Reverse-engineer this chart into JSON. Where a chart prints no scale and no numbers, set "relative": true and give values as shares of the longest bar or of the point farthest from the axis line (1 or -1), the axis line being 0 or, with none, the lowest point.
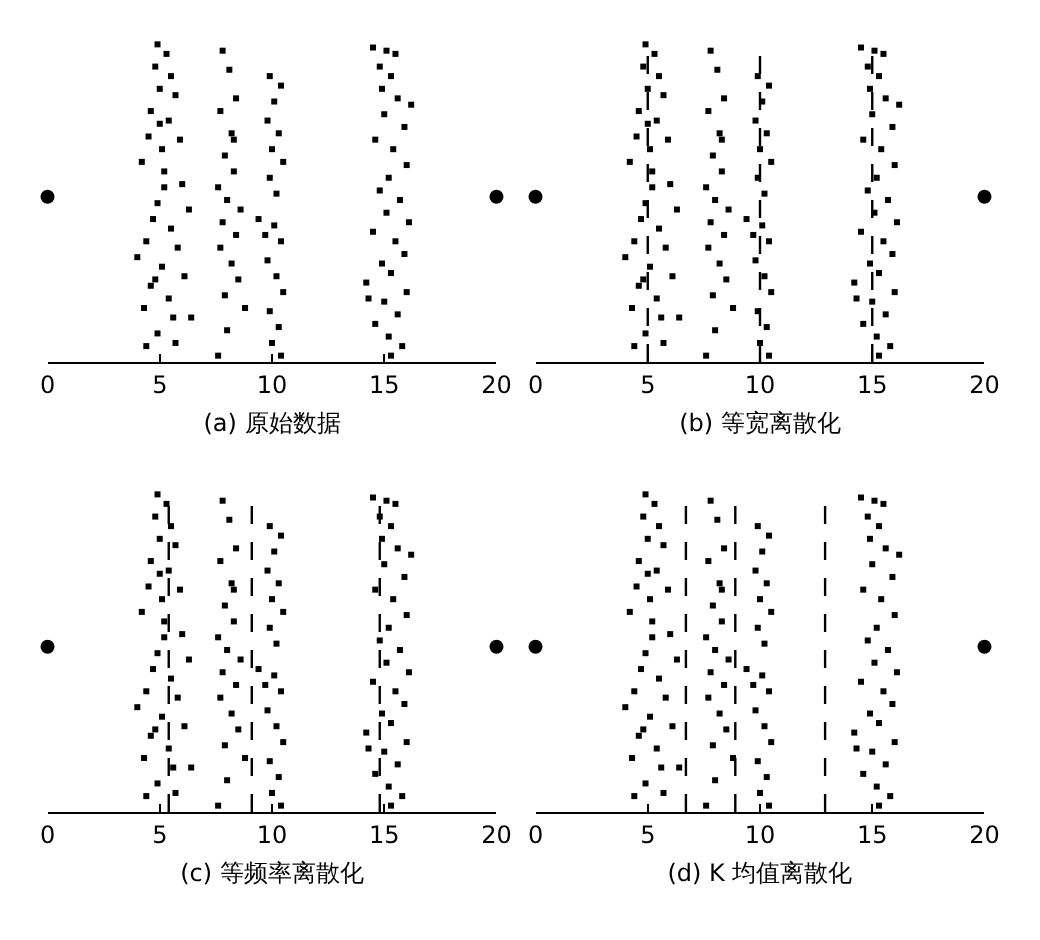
{
  "chart_data": [
    {
      "type": "scatter",
      "xlabel": "(a) 原始数据",
      "relative": true,
      "xlim": [
        0,
        20
      ],
      "xticks": [
        0,
        5,
        10,
        15,
        20
      ],
      "series": [
        {
          "color": "#000000",
          "marker": "square",
          "x": [
            4.9,
            5.3,
            4.8,
            5.5,
            5.0,
            5.7,
            4.6,
            5.4,
            4.5,
            5.9,
            5.1,
            4.2,
            5.2,
            6.0,
            4.9,
            6.3,
            4.7,
            5.5,
            4.4,
            5.8,
            4.0,
            5.1,
            6.1,
            4.6,
            5.4,
            4.3,
            5.6,
            6.4,
            4.9,
            5.7,
            4.4,
            5.2,
            4.8,
            5.0,
            7.8,
            8.1,
            8.4,
            7.7,
            8.2,
            7.9,
            8.3,
            7.6,
            8.0,
            8.6,
            7.8,
            8.4,
            7.7,
            8.2,
            8.5,
            7.9,
            8.8,
            8.0,
            7.6,
            8.3,
            9.9,
            10.4,
            10.1,
            9.8,
            10.3,
            10.0,
            10.5,
            9.9,
            10.2,
            9.4,
            10.1,
            10.4,
            9.8,
            10.2,
            10.5,
            9.9,
            10.3,
            10.0,
            10.4,
            9.7,
            14.5,
            15.1,
            15.5,
            14.8,
            15.3,
            14.9,
            15.6,
            16.2,
            15.0,
            15.9,
            14.6,
            15.4,
            16.0,
            15.2,
            14.8,
            15.7,
            15.1,
            16.1,
            14.5,
            15.5,
            15.9,
            14.9,
            15.3,
            14.2,
            16.0,
            15.0,
            15.6,
            14.6,
            15.2,
            15.8,
            15.3,
            14.3
          ],
          "values": [
            1,
            0.97,
            0.93,
            0.9,
            0.86,
            0.84,
            0.79,
            0.76,
            0.71,
            0.7,
            0.67,
            0.63,
            0.6,
            0.56,
            0.5,
            0.48,
            0.45,
            0.42,
            0.38,
            0.36,
            0.33,
            0.3,
            0.27,
            0.24,
            0.2,
            0.17,
            0.14,
            0.14,
            0.09,
            0.06,
            0.05,
            0.55,
            0.26,
            0.75,
            0.98,
            0.92,
            0.83,
            0.79,
            0.72,
            0.65,
            0.6,
            0.55,
            0.51,
            0.48,
            0.44,
            0.4,
            0.36,
            0.31,
            0.26,
            0.21,
            0.17,
            0.1,
            0.02,
            0.7,
            0.9,
            0.87,
            0.82,
            0.76,
            0.72,
            0.67,
            0.63,
            0.58,
            0.53,
            0.45,
            0.43,
            0.38,
            0.32,
            0.27,
            0.22,
            0.16,
            0.11,
            0.06,
            0.02,
            0.4,
            0.99,
            0.98,
            0.97,
            0.93,
            0.9,
            0.86,
            0.83,
            0.81,
            0.78,
            0.74,
            0.7,
            0.67,
            0.62,
            0.58,
            0.54,
            0.51,
            0.47,
            0.44,
            0.41,
            0.38,
            0.34,
            0.31,
            0.28,
            0.25,
            0.22,
            0.19,
            0.15,
            0.12,
            0.08,
            0.05,
            0.02,
            0.2
          ]
        },
        {
          "color": "#000000",
          "marker": "circle",
          "x": [
            0,
            20
          ],
          "values": [
            0.52,
            0.52
          ]
        }
      ]
    },
    {
      "type": "scatter",
      "xlabel": "(b) 等宽离散化",
      "relative": true,
      "xlim": [
        0,
        20
      ],
      "xticks": [
        0,
        5,
        10,
        15,
        20
      ],
      "ref_lines": [
        {
          "axis": "x",
          "value": 5,
          "color": "#000000",
          "line_style": "dashed"
        },
        {
          "axis": "x",
          "value": 10,
          "color": "#000000",
          "line_style": "dashed"
        },
        {
          "axis": "x",
          "value": 15,
          "color": "#000000",
          "line_style": "dashed"
        }
      ],
      "series": [
        {
          "color": "#000000",
          "marker": "square",
          "x": [
            4.9,
            5.3,
            4.8,
            5.5,
            5.0,
            5.7,
            4.6,
            5.4,
            4.5,
            5.9,
            5.1,
            4.2,
            5.2,
            6.0,
            4.9,
            6.3,
            4.7,
            5.5,
            4.4,
            5.8,
            4.0,
            5.1,
            6.1,
            4.6,
            5.4,
            4.3,
            5.6,
            6.4,
            4.9,
            5.7,
            4.4,
            5.2,
            4.8,
            5.0,
            7.8,
            8.1,
            8.4,
            7.7,
            8.2,
            7.9,
            8.3,
            7.6,
            8.0,
            8.6,
            7.8,
            8.4,
            7.7,
            8.2,
            8.5,
            7.9,
            8.8,
            8.0,
            7.6,
            8.3,
            9.9,
            10.4,
            10.1,
            9.8,
            10.3,
            10.0,
            10.5,
            9.9,
            10.2,
            9.4,
            10.1,
            10.4,
            9.8,
            10.2,
            10.5,
            9.9,
            10.3,
            10.0,
            10.4,
            9.7,
            14.5,
            15.1,
            15.5,
            14.8,
            15.3,
            14.9,
            15.6,
            16.2,
            15.0,
            15.9,
            14.6,
            15.4,
            16.0,
            15.2,
            14.8,
            15.7,
            15.1,
            16.1,
            14.5,
            15.5,
            15.9,
            14.9,
            15.3,
            14.2,
            16.0,
            15.0,
            15.6,
            14.6,
            15.2,
            15.8,
            15.3,
            14.3
          ],
          "values": [
            1,
            0.97,
            0.93,
            0.9,
            0.86,
            0.84,
            0.79,
            0.76,
            0.71,
            0.7,
            0.67,
            0.63,
            0.6,
            0.56,
            0.5,
            0.48,
            0.45,
            0.42,
            0.38,
            0.36,
            0.33,
            0.3,
            0.27,
            0.24,
            0.2,
            0.17,
            0.14,
            0.14,
            0.09,
            0.06,
            0.05,
            0.55,
            0.26,
            0.75,
            0.98,
            0.92,
            0.83,
            0.79,
            0.72,
            0.65,
            0.6,
            0.55,
            0.51,
            0.48,
            0.44,
            0.4,
            0.36,
            0.31,
            0.26,
            0.21,
            0.17,
            0.1,
            0.02,
            0.7,
            0.9,
            0.87,
            0.82,
            0.76,
            0.72,
            0.67,
            0.63,
            0.58,
            0.53,
            0.45,
            0.43,
            0.38,
            0.32,
            0.27,
            0.22,
            0.16,
            0.11,
            0.06,
            0.02,
            0.4,
            0.99,
            0.98,
            0.97,
            0.93,
            0.9,
            0.86,
            0.83,
            0.81,
            0.78,
            0.74,
            0.7,
            0.67,
            0.62,
            0.58,
            0.54,
            0.51,
            0.47,
            0.44,
            0.41,
            0.38,
            0.34,
            0.31,
            0.28,
            0.25,
            0.22,
            0.19,
            0.15,
            0.12,
            0.08,
            0.05,
            0.02,
            0.2
          ]
        },
        {
          "color": "#000000",
          "marker": "circle",
          "x": [
            0,
            20
          ],
          "values": [
            0.52,
            0.52
          ]
        }
      ]
    },
    {
      "type": "scatter",
      "xlabel": "(c) 等频率离散化",
      "relative": true,
      "xlim": [
        0,
        20
      ],
      "xticks": [
        0,
        5,
        10,
        15,
        20
      ],
      "ref_lines": [
        {
          "axis": "x",
          "value": 5.4,
          "color": "#000000",
          "line_style": "dashed"
        },
        {
          "axis": "x",
          "value": 9.1,
          "color": "#000000",
          "line_style": "dashed"
        },
        {
          "axis": "x",
          "value": 14.8,
          "color": "#000000",
          "line_style": "dashed"
        }
      ],
      "series": [
        {
          "color": "#000000",
          "marker": "square",
          "x": [
            4.9,
            5.3,
            4.8,
            5.5,
            5.0,
            5.7,
            4.6,
            5.4,
            4.5,
            5.9,
            5.1,
            4.2,
            5.2,
            6.0,
            4.9,
            6.3,
            4.7,
            5.5,
            4.4,
            5.8,
            4.0,
            5.1,
            6.1,
            4.6,
            5.4,
            4.3,
            5.6,
            6.4,
            4.9,
            5.7,
            4.4,
            5.2,
            4.8,
            5.0,
            7.8,
            8.1,
            8.4,
            7.7,
            8.2,
            7.9,
            8.3,
            7.6,
            8.0,
            8.6,
            7.8,
            8.4,
            7.7,
            8.2,
            8.5,
            7.9,
            8.8,
            8.0,
            7.6,
            8.3,
            9.9,
            10.4,
            10.1,
            9.8,
            10.3,
            10.0,
            10.5,
            9.9,
            10.2,
            9.4,
            10.1,
            10.4,
            9.8,
            10.2,
            10.5,
            9.9,
            10.3,
            10.0,
            10.4,
            9.7,
            14.5,
            15.1,
            15.5,
            14.8,
            15.3,
            14.9,
            15.6,
            16.2,
            15.0,
            15.9,
            14.6,
            15.4,
            16.0,
            15.2,
            14.8,
            15.7,
            15.1,
            16.1,
            14.5,
            15.5,
            15.9,
            14.9,
            15.3,
            14.2,
            16.0,
            15.0,
            15.6,
            14.6,
            15.2,
            15.8,
            15.3,
            14.3
          ],
          "values": [
            1,
            0.97,
            0.93,
            0.9,
            0.86,
            0.84,
            0.79,
            0.76,
            0.71,
            0.7,
            0.67,
            0.63,
            0.6,
            0.56,
            0.5,
            0.48,
            0.45,
            0.42,
            0.38,
            0.36,
            0.33,
            0.3,
            0.27,
            0.24,
            0.2,
            0.17,
            0.14,
            0.14,
            0.09,
            0.06,
            0.05,
            0.55,
            0.26,
            0.75,
            0.98,
            0.92,
            0.83,
            0.79,
            0.72,
            0.65,
            0.6,
            0.55,
            0.51,
            0.48,
            0.44,
            0.4,
            0.36,
            0.31,
            0.26,
            0.21,
            0.17,
            0.1,
            0.02,
            0.7,
            0.9,
            0.87,
            0.82,
            0.76,
            0.72,
            0.67,
            0.63,
            0.58,
            0.53,
            0.45,
            0.43,
            0.38,
            0.32,
            0.27,
            0.22,
            0.16,
            0.11,
            0.06,
            0.02,
            0.4,
            0.99,
            0.98,
            0.97,
            0.93,
            0.9,
            0.86,
            0.83,
            0.81,
            0.78,
            0.74,
            0.7,
            0.67,
            0.62,
            0.58,
            0.54,
            0.51,
            0.47,
            0.44,
            0.41,
            0.38,
            0.34,
            0.31,
            0.28,
            0.25,
            0.22,
            0.19,
            0.15,
            0.12,
            0.08,
            0.05,
            0.02,
            0.2
          ]
        },
        {
          "color": "#000000",
          "marker": "circle",
          "x": [
            0,
            20
          ],
          "values": [
            0.52,
            0.52
          ]
        }
      ]
    },
    {
      "type": "scatter",
      "xlabel": "(d) K 均值离散化",
      "relative": true,
      "xlim": [
        0,
        20
      ],
      "xticks": [
        0,
        5,
        10,
        15,
        20
      ],
      "ref_lines": [
        {
          "axis": "x",
          "value": 6.7,
          "color": "#000000",
          "line_style": "dashed"
        },
        {
          "axis": "x",
          "value": 8.9,
          "color": "#000000",
          "line_style": "dashed"
        },
        {
          "axis": "x",
          "value": 12.9,
          "color": "#000000",
          "line_style": "dashed"
        }
      ],
      "series": [
        {
          "color": "#000000",
          "marker": "square",
          "x": [
            4.9,
            5.3,
            4.8,
            5.5,
            5.0,
            5.7,
            4.6,
            5.4,
            4.5,
            5.9,
            5.1,
            4.2,
            5.2,
            6.0,
            4.9,
            6.3,
            4.7,
            5.5,
            4.4,
            5.8,
            4.0,
            5.1,
            6.1,
            4.6,
            5.4,
            4.3,
            5.6,
            6.4,
            4.9,
            5.7,
            4.4,
            5.2,
            4.8,
            5.0,
            7.8,
            8.1,
            8.4,
            7.7,
            8.2,
            7.9,
            8.3,
            7.6,
            8.0,
            8.6,
            7.8,
            8.4,
            7.7,
            8.2,
            8.5,
            7.9,
            8.8,
            8.0,
            7.6,
            8.3,
            9.9,
            10.4,
            10.1,
            9.8,
            10.3,
            10.0,
            10.5,
            9.9,
            10.2,
            9.4,
            10.1,
            10.4,
            9.8,
            10.2,
            10.5,
            9.9,
            10.3,
            10.0,
            10.4,
            9.7,
            14.5,
            15.1,
            15.5,
            14.8,
            15.3,
            14.9,
            15.6,
            16.2,
            15.0,
            15.9,
            14.6,
            15.4,
            16.0,
            15.2,
            14.8,
            15.7,
            15.1,
            16.1,
            14.5,
            15.5,
            15.9,
            14.9,
            15.3,
            14.2,
            16.0,
            15.0,
            15.6,
            14.6,
            15.2,
            15.8,
            15.3,
            14.3
          ],
          "values": [
            1,
            0.97,
            0.93,
            0.9,
            0.86,
            0.84,
            0.79,
            0.76,
            0.71,
            0.7,
            0.67,
            0.63,
            0.6,
            0.56,
            0.5,
            0.48,
            0.45,
            0.42,
            0.38,
            0.36,
            0.33,
            0.3,
            0.27,
            0.24,
            0.2,
            0.17,
            0.14,
            0.14,
            0.09,
            0.06,
            0.05,
            0.55,
            0.26,
            0.75,
            0.98,
            0.92,
            0.83,
            0.79,
            0.72,
            0.65,
            0.6,
            0.55,
            0.51,
            0.48,
            0.44,
            0.4,
            0.36,
            0.31,
            0.26,
            0.21,
            0.17,
            0.1,
            0.02,
            0.7,
            0.9,
            0.87,
            0.82,
            0.76,
            0.72,
            0.67,
            0.63,
            0.58,
            0.53,
            0.45,
            0.43,
            0.38,
            0.32,
            0.27,
            0.22,
            0.16,
            0.11,
            0.06,
            0.02,
            0.4,
            0.99,
            0.98,
            0.97,
            0.93,
            0.9,
            0.86,
            0.83,
            0.81,
            0.78,
            0.74,
            0.7,
            0.67,
            0.62,
            0.58,
            0.54,
            0.51,
            0.47,
            0.44,
            0.41,
            0.38,
            0.34,
            0.31,
            0.28,
            0.25,
            0.22,
            0.19,
            0.15,
            0.12,
            0.08,
            0.05,
            0.02,
            0.2
          ]
        },
        {
          "color": "#000000",
          "marker": "circle",
          "x": [
            0,
            20
          ],
          "values": [
            0.52,
            0.52
          ]
        }
      ]
    }
  ]
}
